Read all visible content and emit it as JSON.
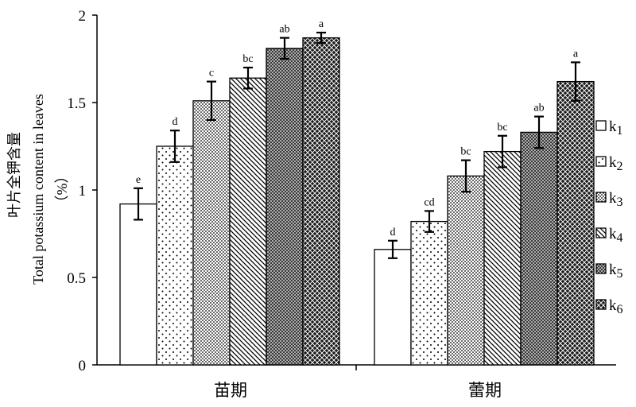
{
  "chart_data": {
    "type": "bar",
    "ylabel_cn": "叶片全钾含量",
    "ylabel_en": "Total potassium content in leaves",
    "ylabel_unit": "（%）",
    "ylim": [
      0,
      2
    ],
    "yticks": [
      "0",
      "0.5",
      "1",
      "1.5",
      "2"
    ],
    "categories": [
      "苗期",
      "蕾期"
    ],
    "series": [
      {
        "name": "k1",
        "values": [
          0.92,
          0.66
        ],
        "errors": [
          0.09,
          0.05
        ],
        "sig": [
          "e",
          "d"
        ]
      },
      {
        "name": "k2",
        "values": [
          1.25,
          0.82
        ],
        "errors": [
          0.09,
          0.06
        ],
        "sig": [
          "d",
          "cd"
        ]
      },
      {
        "name": "k3",
        "values": [
          1.51,
          1.08
        ],
        "errors": [
          0.11,
          0.09
        ],
        "sig": [
          "c",
          "bc"
        ]
      },
      {
        "name": "k4",
        "values": [
          1.64,
          1.22
        ],
        "errors": [
          0.06,
          0.09
        ],
        "sig": [
          "bc",
          "bc"
        ]
      },
      {
        "name": "k5",
        "values": [
          1.81,
          1.33
        ],
        "errors": [
          0.06,
          0.09
        ],
        "sig": [
          "ab",
          "ab"
        ]
      },
      {
        "name": "k6",
        "values": [
          1.87,
          1.62
        ],
        "errors": [
          0.03,
          0.11
        ],
        "sig": [
          "a",
          "a"
        ]
      }
    ],
    "legend_position": "right",
    "grid": false
  }
}
